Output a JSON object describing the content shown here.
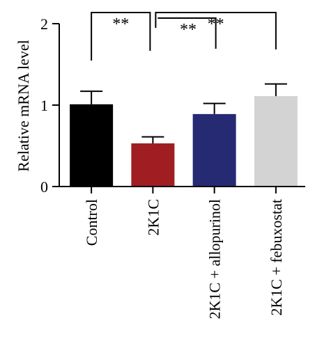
{
  "chart_data": {
    "type": "bar",
    "categories": [
      "Control",
      "2K1C",
      "2K1C + allopurinol",
      "2K1C + febuxostat"
    ],
    "values": [
      1.01,
      0.53,
      0.89,
      1.11
    ],
    "errors": [
      0.16,
      0.08,
      0.13,
      0.15
    ],
    "colors": [
      "#000000",
      "#a01e22",
      "#252a73",
      "#d3d3d3"
    ],
    "ylabel": "Relative mRNA level",
    "ylim": [
      0,
      2
    ],
    "yticks": [
      "0",
      "1",
      "2"
    ],
    "legend": "none",
    "grid": false,
    "annotations": [
      {
        "from": 0,
        "to": 1,
        "label": "**"
      },
      {
        "from": 1,
        "to": 2,
        "label": "**"
      },
      {
        "from": 1,
        "to": 3,
        "label": "**"
      }
    ]
  }
}
